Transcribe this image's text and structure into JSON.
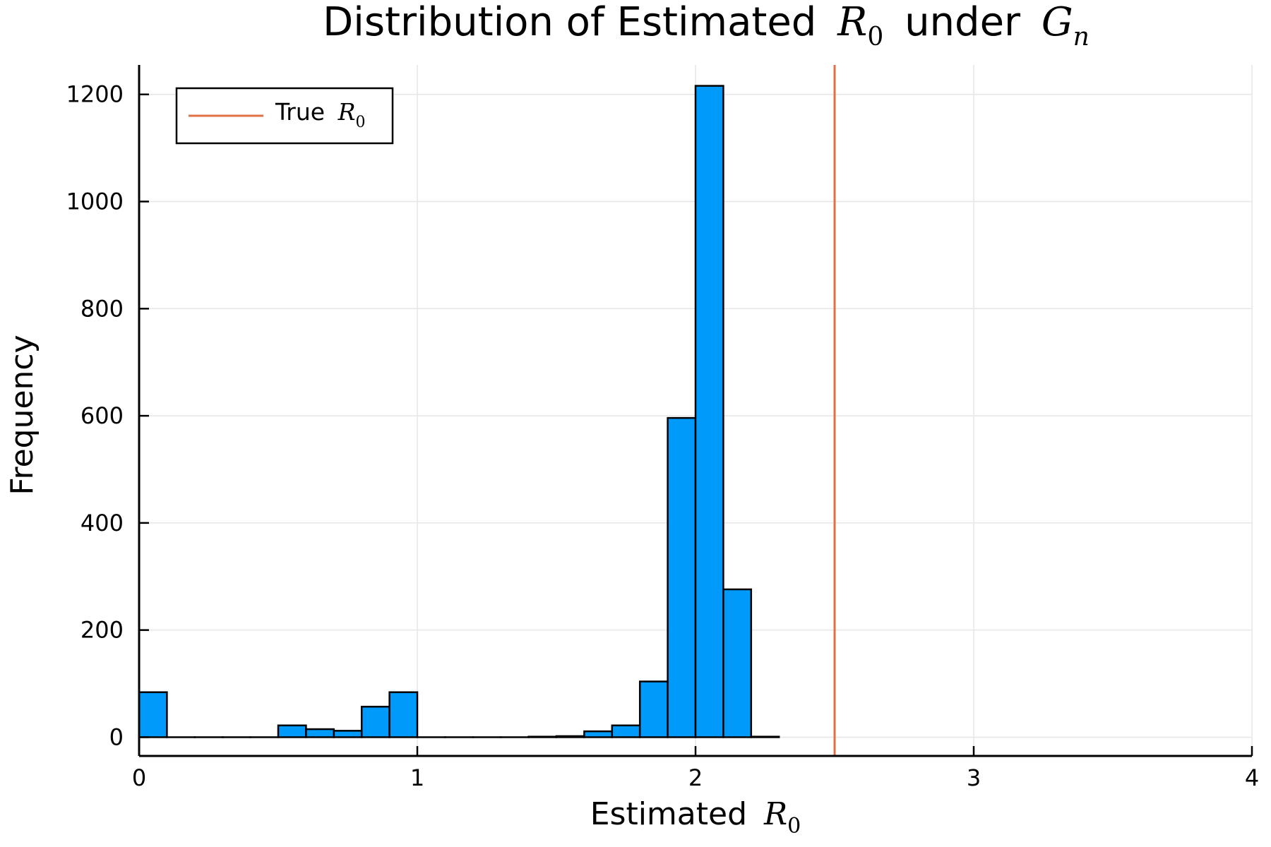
{
  "chart_data": {
    "type": "bar",
    "title_text": "Distribution of Estimated",
    "title_math": "R",
    "title_sub": "0",
    "title_text2": "under",
    "title_math2": "G",
    "title_sub2": "n",
    "xlabel_text": "Estimated",
    "xlabel_math": "R",
    "xlabel_sub": "0",
    "ylabel": "Frequency",
    "xlim": [
      0,
      4
    ],
    "ylim": [
      -35,
      1255
    ],
    "xticks": [
      0,
      1,
      2,
      3,
      4
    ],
    "xtick_labels": [
      "0",
      "1",
      "2",
      "3",
      "4"
    ],
    "yticks": [
      0,
      200,
      400,
      600,
      800,
      1000,
      1200
    ],
    "ytick_labels": [
      "0",
      "200",
      "400",
      "600",
      "800",
      "1000",
      "1200"
    ],
    "grid": true,
    "bin_width": 0.1,
    "bin_edges_start": 0,
    "values": [
      84,
      0,
      0,
      0,
      0,
      22,
      15,
      12,
      57,
      84,
      0,
      0,
      0,
      0,
      1,
      2,
      11,
      22,
      104,
      596,
      1216,
      276,
      1
    ],
    "bar_color": "#009AFA",
    "vline_x": 2.5,
    "vline_color": "#E26F46",
    "legend": {
      "position": "top-left",
      "label_text": "True",
      "label_math": "R",
      "label_sub": "0"
    }
  }
}
